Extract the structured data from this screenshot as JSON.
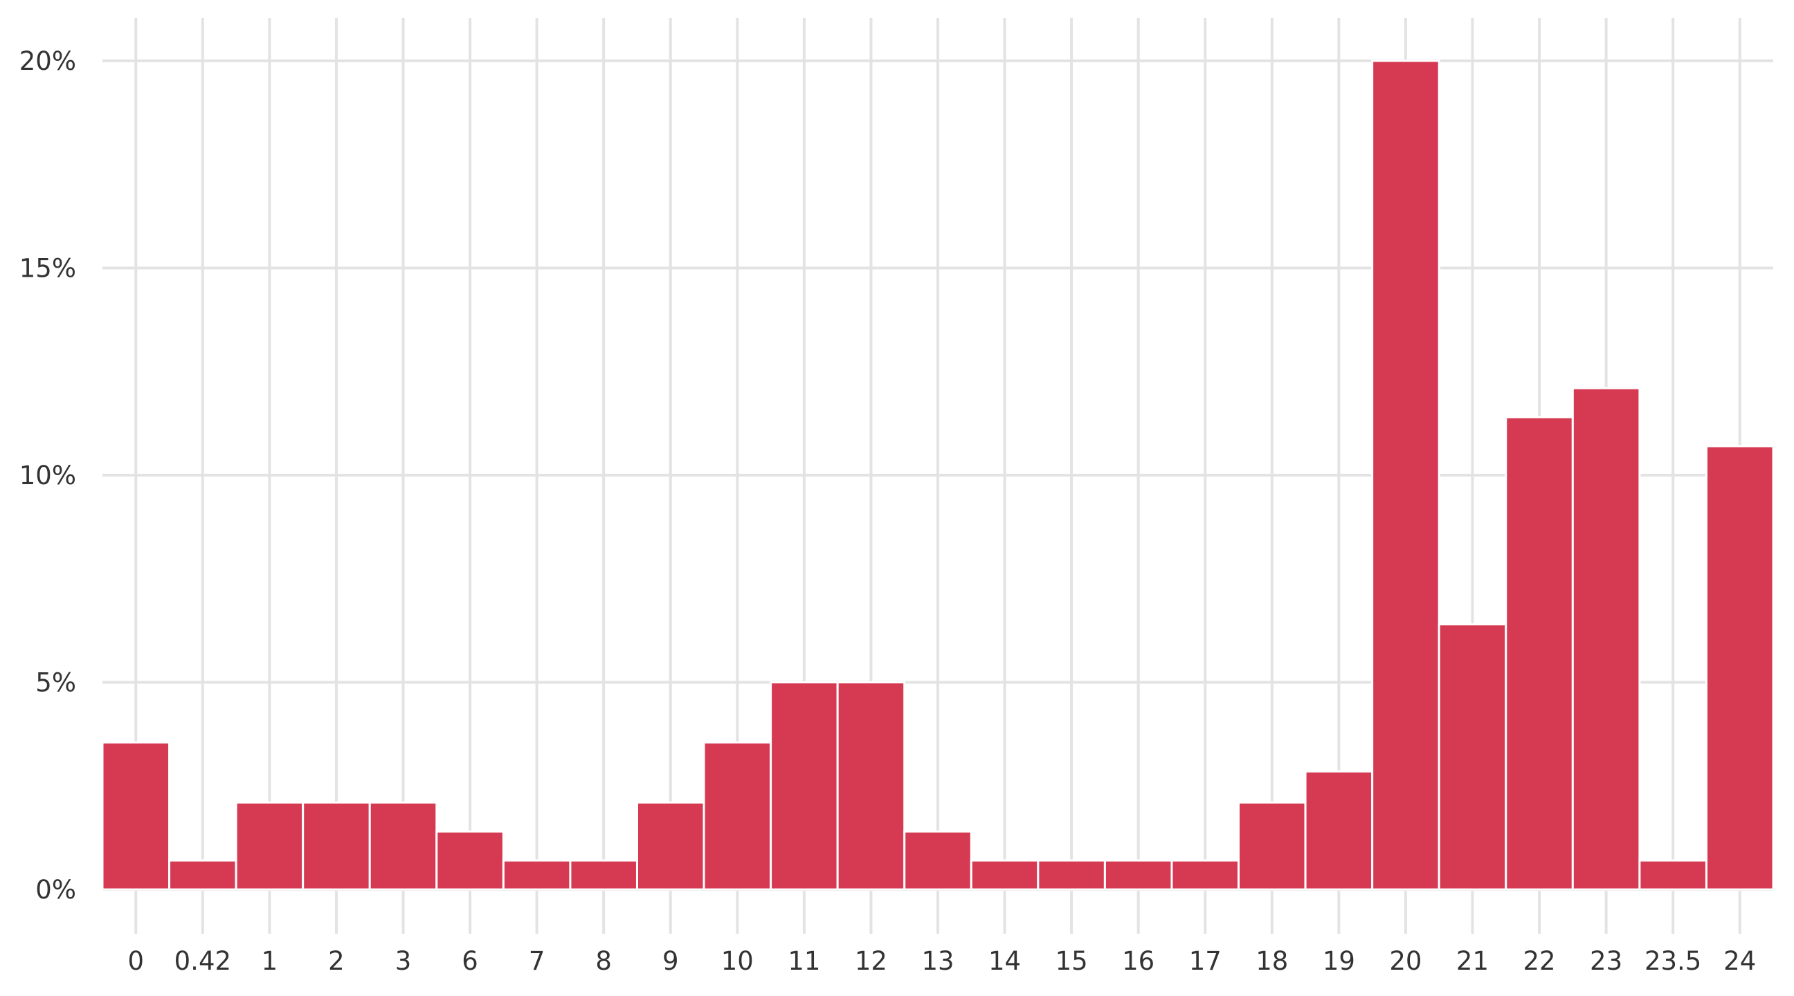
{
  "chart_data": {
    "type": "bar",
    "title": "",
    "xlabel": "",
    "ylabel": "",
    "categories": [
      "0",
      "0.42",
      "1",
      "2",
      "3",
      "6",
      "7",
      "8",
      "9",
      "10",
      "11",
      "12",
      "13",
      "14",
      "15",
      "16",
      "17",
      "18",
      "19",
      "20",
      "21",
      "22",
      "23",
      "23.5",
      "24"
    ],
    "values": [
      3.55,
      0.7,
      2.1,
      2.1,
      2.1,
      1.4,
      0.7,
      0.7,
      2.1,
      3.55,
      5.0,
      5.0,
      1.4,
      0.7,
      0.7,
      0.7,
      0.7,
      2.1,
      2.85,
      20.0,
      6.4,
      11.4,
      12.1,
      0.7,
      10.7
    ],
    "ylim": [
      0,
      20
    ],
    "yticks": [
      0,
      5,
      10,
      15,
      20
    ],
    "ytick_labels": [
      "0%",
      "5%",
      "10%",
      "15%",
      "20%"
    ],
    "grid": true,
    "bar_color": "#d63a52"
  }
}
